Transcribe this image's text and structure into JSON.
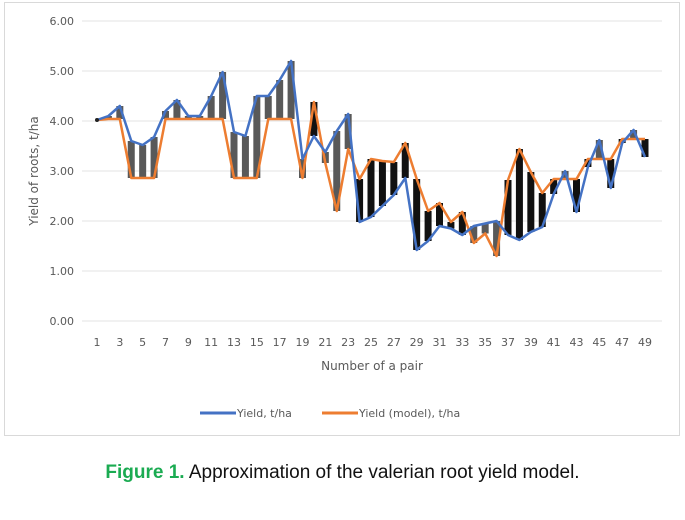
{
  "chart_data": {
    "type": "line",
    "title": "",
    "xlabel": "Number of a pair",
    "ylabel": "Yield of roots, t/ha",
    "ylim": [
      0,
      6
    ],
    "yticks": [
      "0.00",
      "1.00",
      "2.00",
      "3.00",
      "4.00",
      "5.00",
      "6.00"
    ],
    "xlim": [
      1,
      49
    ],
    "xticks": [
      "1",
      "3",
      "5",
      "7",
      "9",
      "11",
      "13",
      "15",
      "17",
      "19",
      "21",
      "23",
      "25",
      "27",
      "29",
      "31",
      "33",
      "35",
      "37",
      "39",
      "41",
      "43",
      "45",
      "47",
      "49"
    ],
    "grid": true,
    "legend_position": "bottom",
    "x": [
      1,
      2,
      3,
      4,
      5,
      6,
      7,
      8,
      9,
      10,
      11,
      12,
      13,
      14,
      15,
      16,
      17,
      18,
      19,
      20,
      21,
      22,
      23,
      24,
      25,
      26,
      27,
      28,
      29,
      30,
      31,
      32,
      33,
      34,
      35,
      36,
      37,
      38,
      39,
      40,
      41,
      42,
      43,
      44,
      45,
      46,
      47,
      48,
      49
    ],
    "series": [
      {
        "name": "Yield, t/ha",
        "color": "#4472c4",
        "values": [
          4.02,
          4.1,
          4.3,
          3.6,
          3.52,
          3.68,
          4.2,
          4.42,
          4.1,
          4.1,
          4.5,
          4.98,
          3.78,
          3.7,
          4.5,
          4.5,
          4.82,
          5.2,
          3.24,
          3.7,
          3.38,
          3.8,
          4.14,
          1.98,
          2.08,
          2.3,
          2.52,
          2.86,
          1.42,
          1.6,
          1.9,
          1.85,
          1.72,
          1.9,
          1.95,
          2.0,
          1.72,
          1.62,
          1.78,
          1.88,
          2.54,
          3.0,
          2.18,
          3.08,
          3.62,
          2.66,
          3.56,
          3.82,
          3.28
        ]
      },
      {
        "name": "Yield (model), t/ha",
        "color": "#ed7d31",
        "values": [
          4.02,
          4.04,
          4.04,
          2.86,
          2.86,
          2.86,
          4.04,
          4.04,
          4.04,
          4.04,
          4.04,
          4.04,
          2.86,
          2.86,
          2.86,
          4.04,
          4.04,
          4.04,
          2.86,
          4.38,
          3.16,
          2.2,
          3.44,
          2.84,
          3.24,
          3.2,
          3.18,
          3.56,
          2.84,
          2.2,
          2.36,
          1.98,
          2.18,
          1.56,
          1.75,
          1.3,
          2.82,
          3.44,
          2.98,
          2.56,
          2.84,
          2.84,
          2.84,
          3.24,
          3.24,
          3.24,
          3.64,
          3.64,
          3.64
        ]
      }
    ],
    "error_bars": {
      "description": "Vertical bars connecting actual and model values",
      "color_up": "#595959",
      "color_down": "#111111"
    }
  },
  "caption": {
    "label": "Figure 1.",
    "text": " Approximation of the valerian root yield model."
  }
}
